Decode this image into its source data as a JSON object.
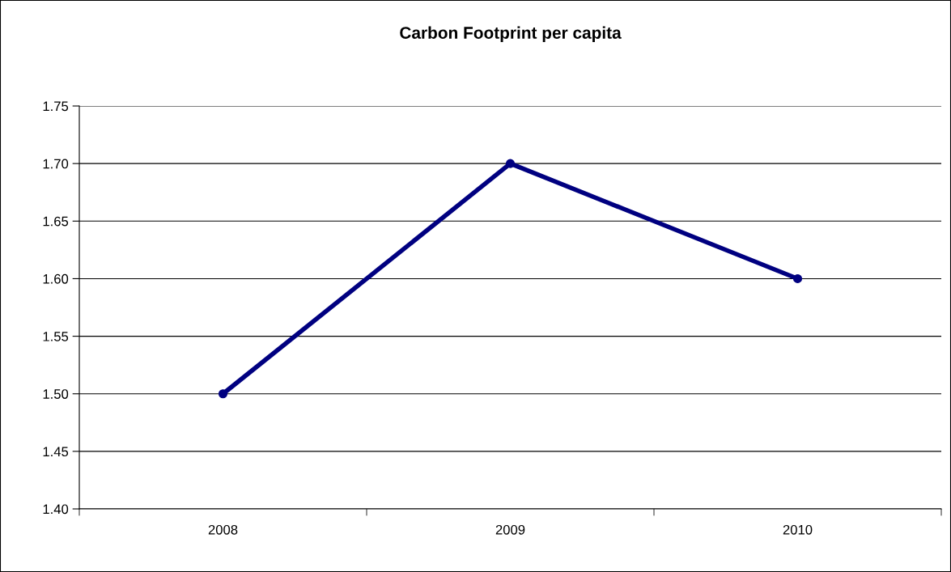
{
  "chart_data": {
    "type": "line",
    "title": "Carbon Footprint per capita",
    "categories": [
      "2008",
      "2009",
      "2010"
    ],
    "series": [
      {
        "color": "#000080",
        "values": [
          1.5,
          1.7,
          1.6
        ]
      }
    ],
    "ylim": [
      1.4,
      1.75
    ],
    "yticks": [
      {
        "value": 1.4,
        "label": "1.40"
      },
      {
        "value": 1.45,
        "label": "1.45"
      },
      {
        "value": 1.5,
        "label": "1.50"
      },
      {
        "value": 1.55,
        "label": "1.55"
      },
      {
        "value": 1.6,
        "label": "1.60"
      },
      {
        "value": 1.65,
        "label": "1.65"
      },
      {
        "value": 1.7,
        "label": "1.70"
      },
      {
        "value": 1.75,
        "label": "1.75"
      }
    ],
    "grid": "y",
    "marker": "circle",
    "line_style": "solid",
    "legend": false
  }
}
